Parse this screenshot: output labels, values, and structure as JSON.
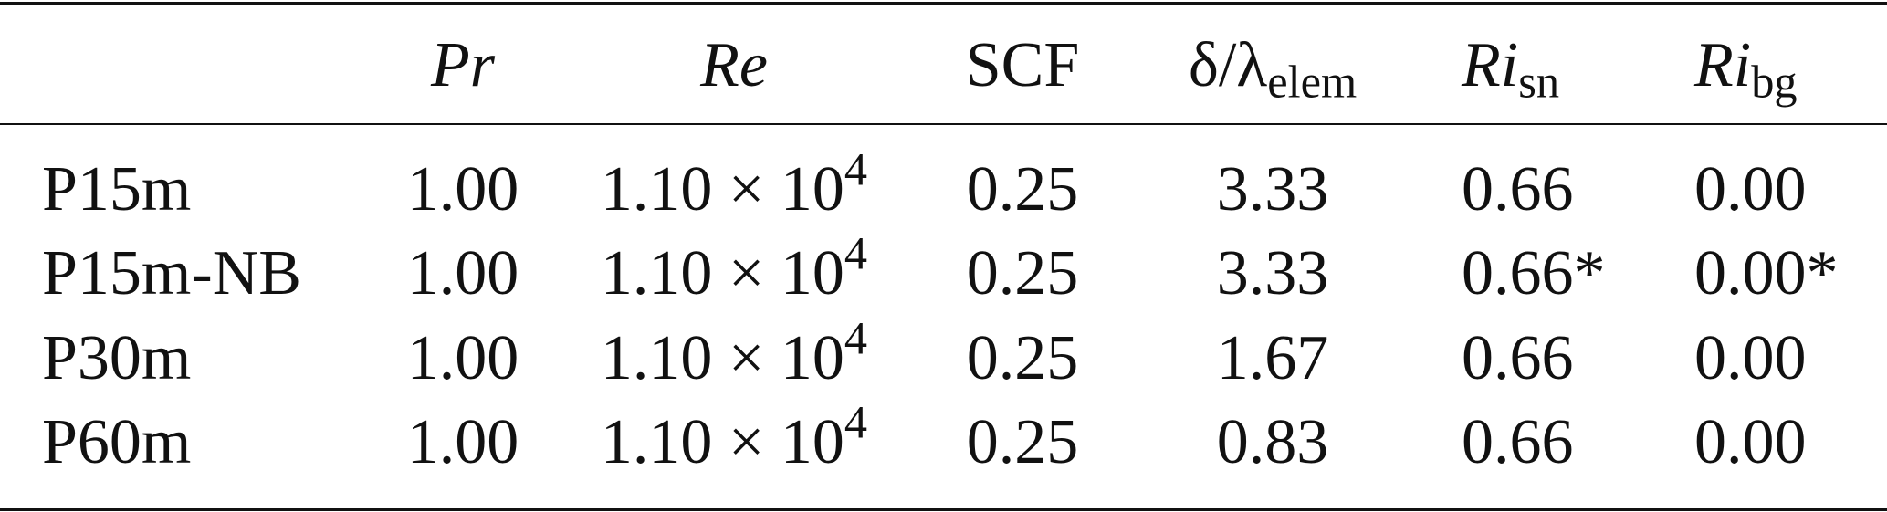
{
  "table": {
    "header": [
      {
        "main": "Pr"
      },
      {
        "main": "Re"
      },
      {
        "main": "SCF"
      },
      {
        "main": "δ/λ",
        "sub": "elem"
      },
      {
        "main": "Ri",
        "sub": "sn"
      },
      {
        "main": "Ri",
        "sub": "bg"
      }
    ],
    "rows": [
      [
        "P15m",
        "1.00",
        {
          "base": "1.10 × 10",
          "sup": "4"
        },
        "0.25",
        "3.33",
        "0.66",
        "0.00"
      ],
      [
        "P15m-NB",
        "1.00",
        {
          "base": "1.10 × 10",
          "sup": "4"
        },
        "0.25",
        "3.33",
        "0.66*",
        "0.00*"
      ],
      [
        "P30m",
        "1.00",
        {
          "base": "1.10 × 10",
          "sup": "4"
        },
        "0.25",
        "1.67",
        "0.66",
        "0.00"
      ],
      [
        "P60m",
        "1.00",
        {
          "base": "1.10 × 10",
          "sup": "4"
        },
        "0.25",
        "0.83",
        "0.66",
        "0.00"
      ]
    ]
  }
}
